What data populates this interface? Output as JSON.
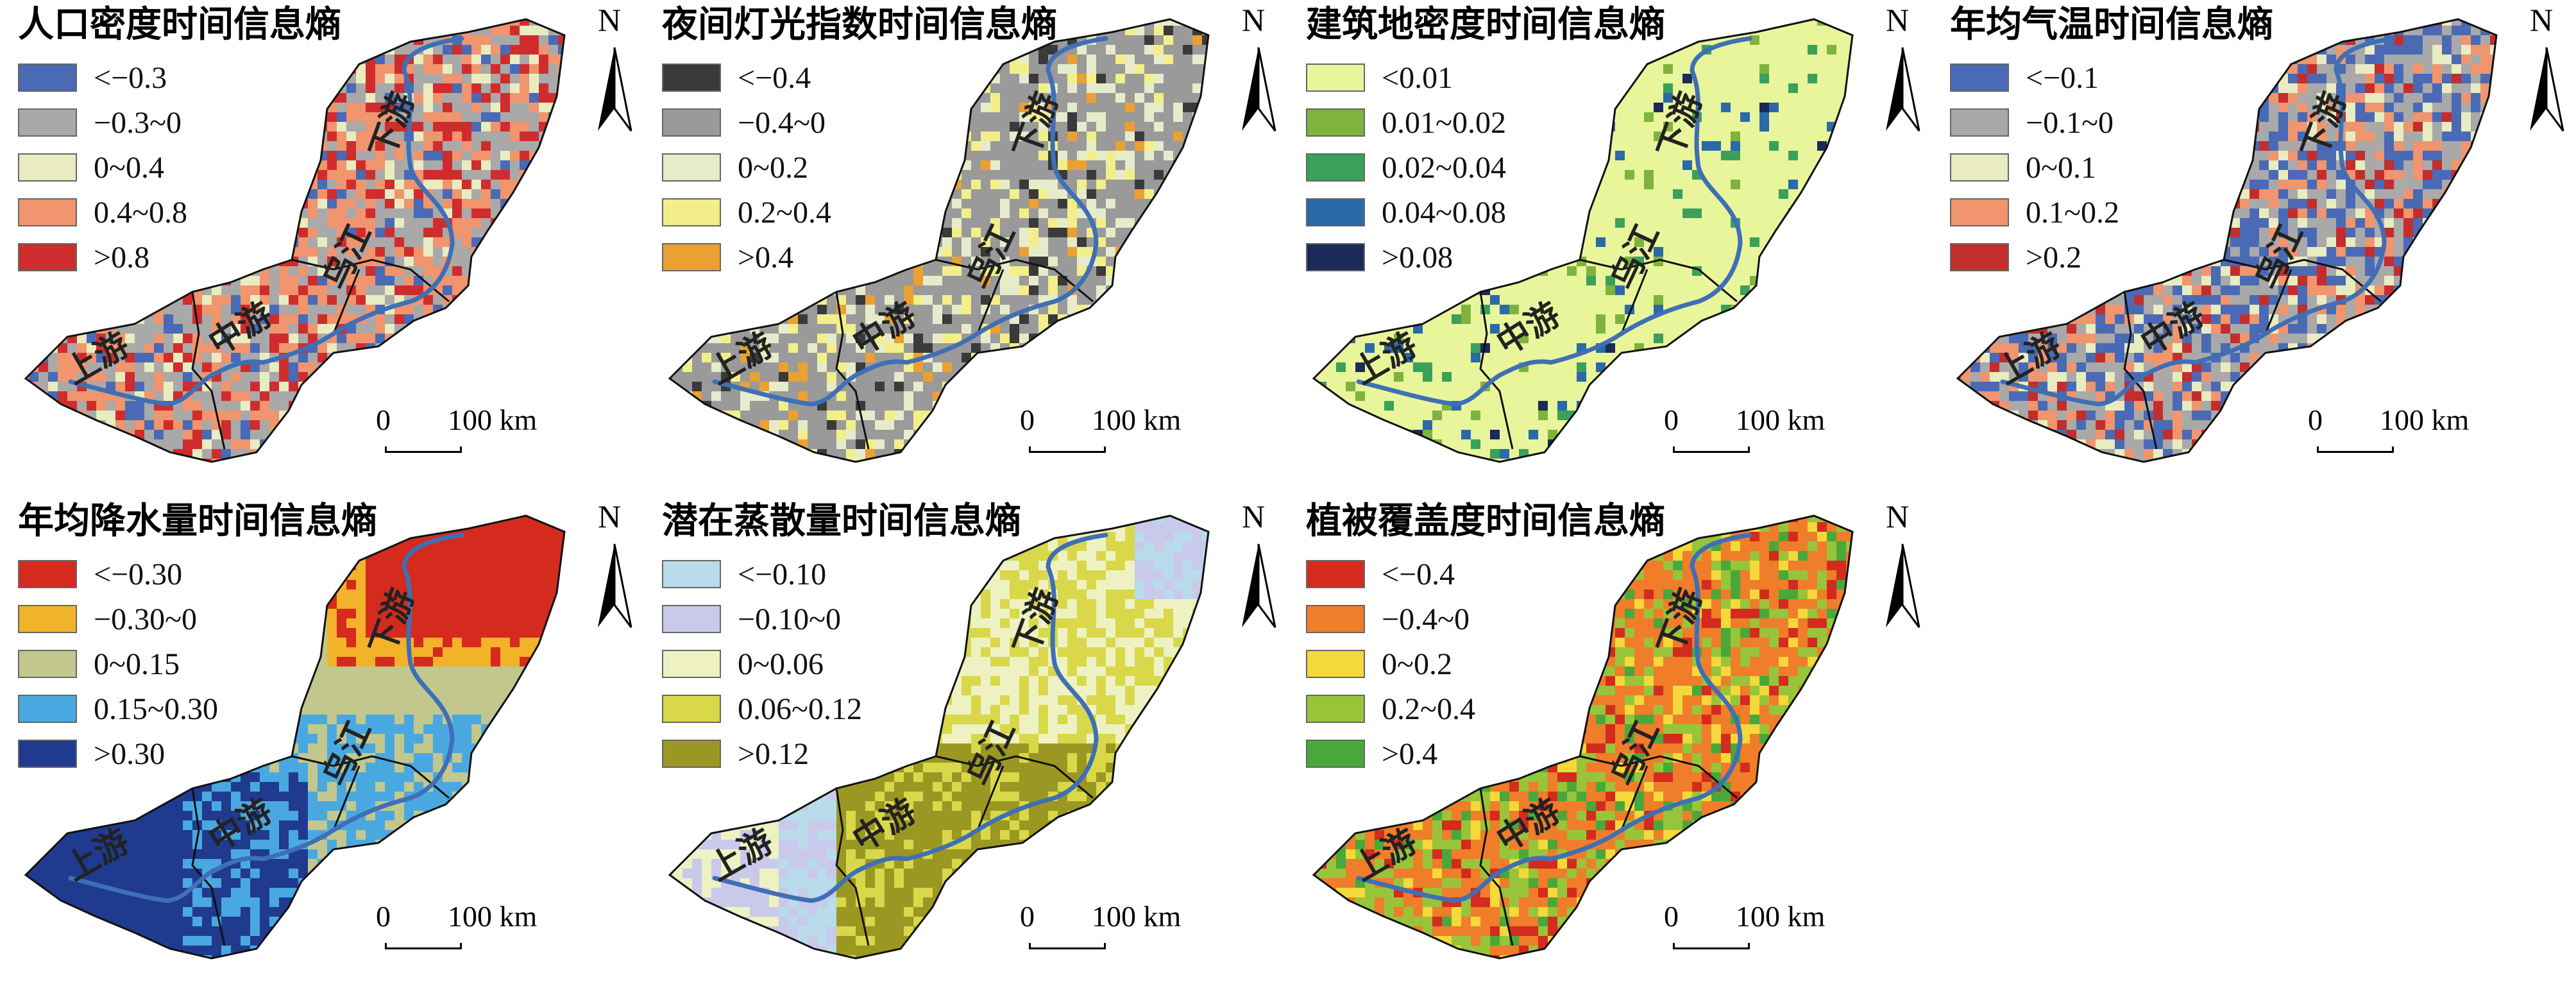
{
  "region_labels": {
    "upper": "上游",
    "middle": "中游",
    "wu": "乌江",
    "lower": "下游"
  },
  "north_label": "N",
  "scale": {
    "zero": "0",
    "distance": "100 km"
  },
  "panels": [
    {
      "id": "population-density",
      "title": "人口密度时间信息熵",
      "legend": [
        {
          "label": "<−0.3",
          "color": "#4a6ab5"
        },
        {
          "label": "−0.3~0",
          "color": "#a9a9a9"
        },
        {
          "label": "0~0.4",
          "color": "#e8ecc0"
        },
        {
          "label": "0.4~0.8",
          "color": "#f0956e"
        },
        {
          "label": ">0.8",
          "color": "#cf2d2d"
        }
      ]
    },
    {
      "id": "night-light",
      "title": "夜间灯光指数时间信息熵",
      "legend": [
        {
          "label": "<−0.4",
          "color": "#3a3a3a"
        },
        {
          "label": "−0.4~0",
          "color": "#9a9a9a"
        },
        {
          "label": "0~0.2",
          "color": "#e6eccb"
        },
        {
          "label": "0.2~0.4",
          "color": "#f2ef8a"
        },
        {
          "label": ">0.4",
          "color": "#eba032"
        }
      ]
    },
    {
      "id": "built-up-density",
      "title": "建筑地密度时间信息熵",
      "legend": [
        {
          "label": "<0.01",
          "color": "#e9f59b"
        },
        {
          "label": "0.01~0.02",
          "color": "#7fb33e"
        },
        {
          "label": "0.02~0.04",
          "color": "#3aa05a"
        },
        {
          "label": "0.04~0.08",
          "color": "#2a6aa8"
        },
        {
          "label": ">0.08",
          "color": "#1a2a5a"
        }
      ]
    },
    {
      "id": "annual-temperature",
      "title": "年均气温时间信息熵",
      "legend": [
        {
          "label": "<−0.1",
          "color": "#4a6ab5"
        },
        {
          "label": "−0.1~0",
          "color": "#a9a9a9"
        },
        {
          "label": "0~0.1",
          "color": "#e8ecc0"
        },
        {
          "label": "0.1~0.2",
          "color": "#f0956e"
        },
        {
          "label": ">0.2",
          "color": "#c42d2d"
        }
      ]
    },
    {
      "id": "annual-precipitation",
      "title": "年均降水量时间信息熵",
      "legend": [
        {
          "label": "<−0.30",
          "color": "#d42b1e"
        },
        {
          "label": "−0.30~0",
          "color": "#f2b22a"
        },
        {
          "label": "0~0.15",
          "color": "#c2c78d"
        },
        {
          "label": "0.15~0.30",
          "color": "#4aa8e0"
        },
        {
          "label": ">0.30",
          "color": "#1f3a8e"
        }
      ]
    },
    {
      "id": "potential-evaporation",
      "title": "潜在蒸散量时间信息熵",
      "legend": [
        {
          "label": "<−0.10",
          "color": "#b8dcea"
        },
        {
          "label": "−0.10~0",
          "color": "#c9c9ec"
        },
        {
          "label": "0~0.06",
          "color": "#eef2c2"
        },
        {
          "label": "0.06~0.12",
          "color": "#d8d84a"
        },
        {
          "label": ">0.12",
          "color": "#9a9822"
        }
      ]
    },
    {
      "id": "vegetation-cover",
      "title": "植被覆盖度时间信息熵",
      "legend": [
        {
          "label": "<−0.4",
          "color": "#d42b1e"
        },
        {
          "label": "−0.4~0",
          "color": "#ef7d2a"
        },
        {
          "label": "0~0.2",
          "color": "#f5d83a"
        },
        {
          "label": "0.2~0.4",
          "color": "#98c43a"
        },
        {
          "label": ">0.4",
          "color": "#4aa83a"
        }
      ]
    }
  ]
}
